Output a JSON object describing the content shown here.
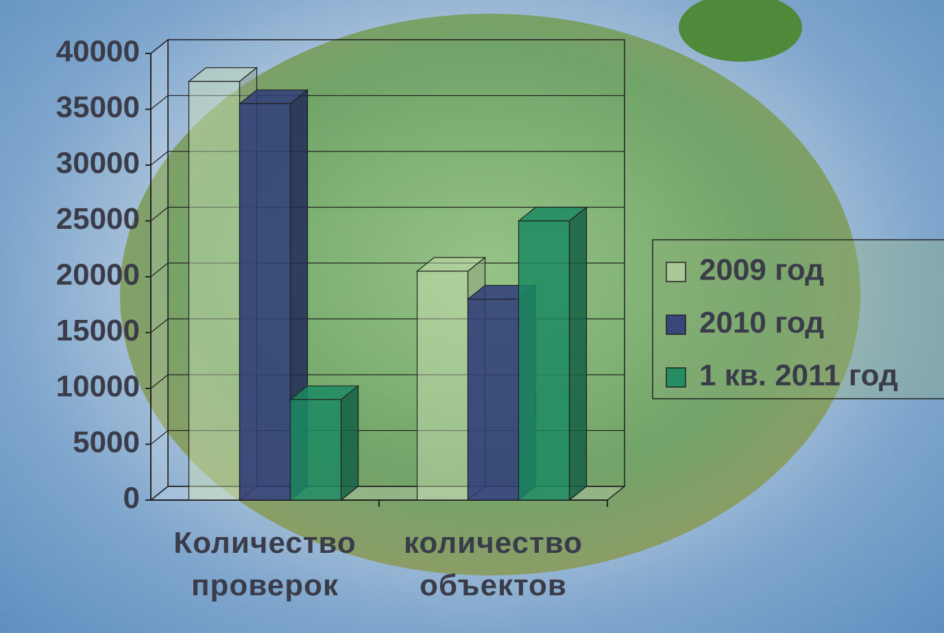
{
  "chart_data": {
    "type": "bar3d",
    "categories": [
      "Количество проверок",
      "количество объектов"
    ],
    "series": [
      {
        "name": "2009 год",
        "color": "#cfe3b8",
        "values": [
          37500,
          20500
        ]
      },
      {
        "name": "2010 год",
        "color": "#2f3c7a",
        "values": [
          35500,
          18000
        ]
      },
      {
        "name": "1 кв. 2011 год",
        "color": "#1c8a62",
        "values": [
          9000,
          25000
        ]
      }
    ],
    "ylim": [
      0,
      40000
    ],
    "yticks": [
      0,
      5000,
      10000,
      15000,
      20000,
      25000,
      30000,
      35000,
      40000
    ],
    "grid": true,
    "legend": "right"
  }
}
